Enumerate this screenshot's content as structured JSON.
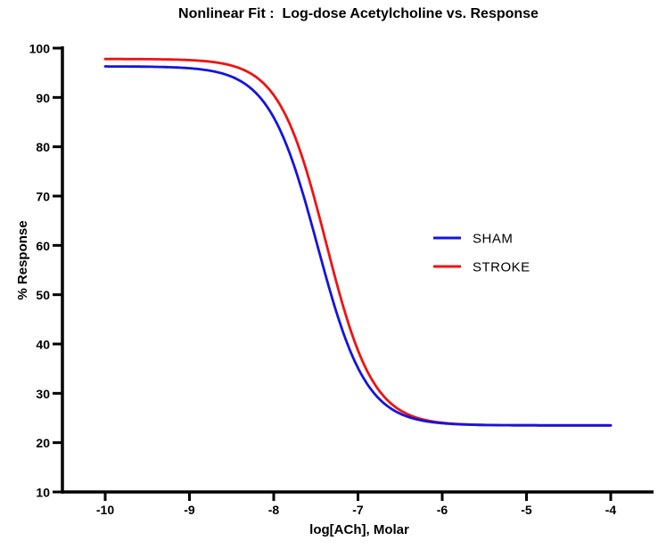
{
  "chart_data": {
    "type": "line",
    "title": "Nonlinear Fit :  Log-dose Acetylcholine vs. Response",
    "xlabel": "log[ACh], Molar",
    "ylabel": "% Response",
    "xlim": [
      -10.55,
      -3.49
    ],
    "ylim": [
      10,
      100
    ],
    "x_ticks": [
      -10,
      -9,
      -8,
      -7,
      -6,
      -5,
      -4
    ],
    "y_ticks": [
      10,
      20,
      30,
      40,
      50,
      60,
      70,
      80,
      90,
      100
    ],
    "grid": false,
    "legend_position": "middle-right",
    "axis_color": "#000000",
    "background_color": "#ffffff",
    "curve_x_range": [
      -10,
      -4
    ],
    "series": [
      {
        "name": "SHAM",
        "color": "#1414e0",
        "model": "four_parameter_logistic",
        "top": 96.3,
        "bottom": 23.5,
        "logIC50": -7.48,
        "hillslope": 1.5,
        "fit_values_at_x_ticks": [
          96.3,
          95.9,
          85.9,
          35.1,
          23.9,
          23.5,
          23.5
        ]
      },
      {
        "name": "STROKE",
        "color": "#f01212",
        "model": "four_parameter_logistic",
        "top": 97.8,
        "bottom": 23.5,
        "logIC50": -7.38,
        "hillslope": 1.55,
        "fit_values_at_x_ticks": [
          97.8,
          97.5,
          90.5,
          38.7,
          24.0,
          23.5,
          23.5
        ]
      }
    ]
  }
}
